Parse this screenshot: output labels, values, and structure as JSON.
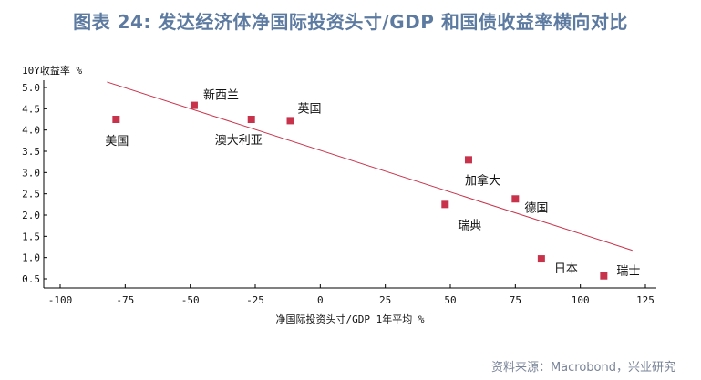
{
  "title": "图表 24: 发达经济体净国际投资头寸/GDP 和国债收益率横向对比",
  "source": "资料来源：Macrobond，兴业研究",
  "colors": {
    "marker": "#c8334b",
    "trend": "#c8334b",
    "title": "#5d7ba1",
    "axis": "#000000"
  },
  "chart_data": {
    "type": "scatter",
    "xlabel": "净国际投资头寸/GDP 1年平均 %",
    "ylabel": "10Y收益率 %",
    "xlim": [
      -100,
      125
    ],
    "ylim": [
      0.5,
      5.0
    ],
    "x_ticks": [
      "-100",
      "-75",
      "-50",
      "-25",
      "0",
      "25",
      "50",
      "75",
      "100",
      "125"
    ],
    "y_ticks": [
      "0.5",
      "1.0",
      "1.5",
      "2.0",
      "2.5",
      "3.0",
      "3.5",
      "4.0",
      "4.5",
      "5.0"
    ],
    "points": [
      {
        "label": "美国",
        "x": -78.5,
        "y": 4.25
      },
      {
        "label": "新西兰",
        "x": -48.5,
        "y": 4.58
      },
      {
        "label": "澳大利亚",
        "x": -26.5,
        "y": 4.25
      },
      {
        "label": "英国",
        "x": -11.5,
        "y": 4.22
      },
      {
        "label": "加拿大",
        "x": 57,
        "y": 3.3
      },
      {
        "label": "瑞典",
        "x": 48,
        "y": 2.25
      },
      {
        "label": "德国",
        "x": 75,
        "y": 2.38
      },
      {
        "label": "日本",
        "x": 85,
        "y": 0.97
      },
      {
        "label": "瑞士",
        "x": 109,
        "y": 0.57
      }
    ],
    "trendline": {
      "x": [
        -82,
        120
      ],
      "y": [
        5.13,
        1.17
      ]
    },
    "grid": false,
    "legend": "none"
  }
}
